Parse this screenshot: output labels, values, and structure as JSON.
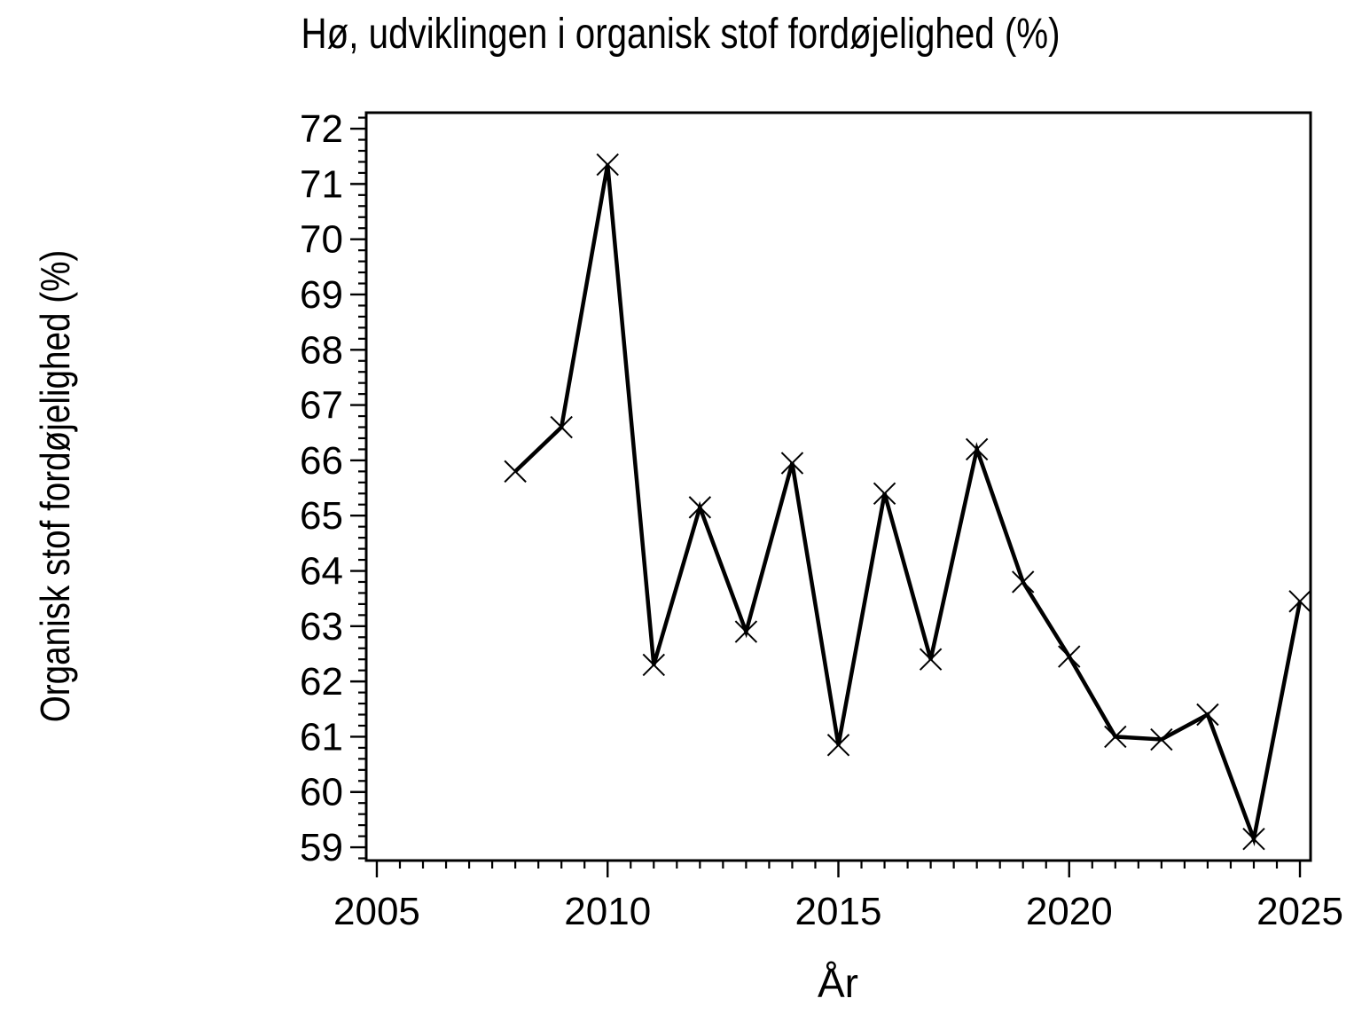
{
  "page": {
    "background": "#ffffff",
    "foreground": "#000000"
  },
  "chart_data": {
    "type": "line",
    "title": "Hø, udviklingen i organisk stof fordøjelighed (%)",
    "xlabel": "År",
    "ylabel": "Organisk stof fordøjelighed (%)",
    "series": [
      {
        "marker": "x",
        "color": "#000000",
        "x": [
          2008,
          2009,
          2010,
          2011,
          2012,
          2013,
          2014,
          2015,
          2016,
          2017,
          2018,
          2019,
          2020,
          2021,
          2022,
          2023,
          2024,
          2025
        ],
        "values": [
          65.8,
          66.6,
          71.35,
          62.3,
          65.15,
          62.9,
          65.95,
          60.85,
          65.4,
          62.4,
          66.2,
          63.8,
          62.45,
          61.0,
          60.95,
          61.4,
          59.15,
          63.45
        ]
      }
    ],
    "xlim": [
      2004.77,
      2025.23
    ],
    "ylim": [
      58.76,
      72.29
    ],
    "x_major_ticks": [
      2005,
      2010,
      2015,
      2020,
      2025
    ],
    "x_minor_step": 0.5,
    "y_major_ticks": [
      59,
      60,
      61,
      62,
      63,
      64,
      65,
      66,
      67,
      68,
      69,
      70,
      71,
      72
    ],
    "y_minor_step": 0.2,
    "grid": "off",
    "legend": "none",
    "axis_color": "#000000",
    "background": "#ffffff"
  }
}
